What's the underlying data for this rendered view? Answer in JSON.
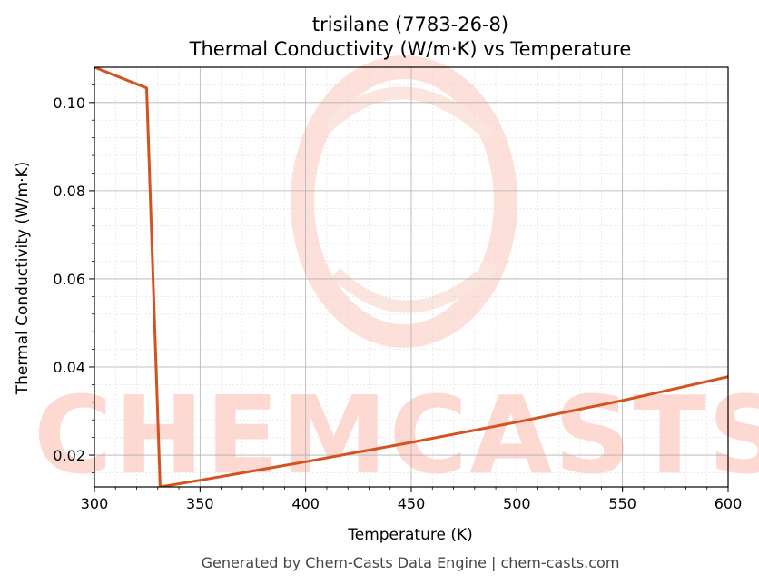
{
  "chart_data": {
    "type": "line",
    "title": "trisilane (7783-26-8)",
    "subtitle": "Thermal Conductivity (W/m·K) vs Temperature",
    "xlabel": "Temperature (K)",
    "ylabel": "Thermal Conductivity (W/m·K)",
    "xlim": [
      300,
      600
    ],
    "ylim": [
      0.0128,
      0.108
    ],
    "x_ticks": [
      300,
      350,
      400,
      450,
      500,
      550,
      600
    ],
    "y_ticks": [
      0.02,
      0.04,
      0.06,
      0.08,
      0.1
    ],
    "x_tick_labels": [
      "300",
      "350",
      "400",
      "450",
      "500",
      "550",
      "600"
    ],
    "y_tick_labels": [
      "0.02",
      "0.04",
      "0.06",
      "0.08",
      "0.10"
    ],
    "grid": true,
    "series": [
      {
        "color": "#d4521f",
        "x": [
          300,
          324.7,
          331.1,
          350,
          400,
          450,
          500,
          550,
          600
        ],
        "y": [
          0.108,
          0.1033,
          0.0128,
          0.0143,
          0.0185,
          0.0229,
          0.0275,
          0.0324,
          0.0378
        ]
      }
    ]
  },
  "watermark": "CHEMCASTS",
  "footer": "Generated by Chem-Casts Data Engine | chem-casts.com"
}
